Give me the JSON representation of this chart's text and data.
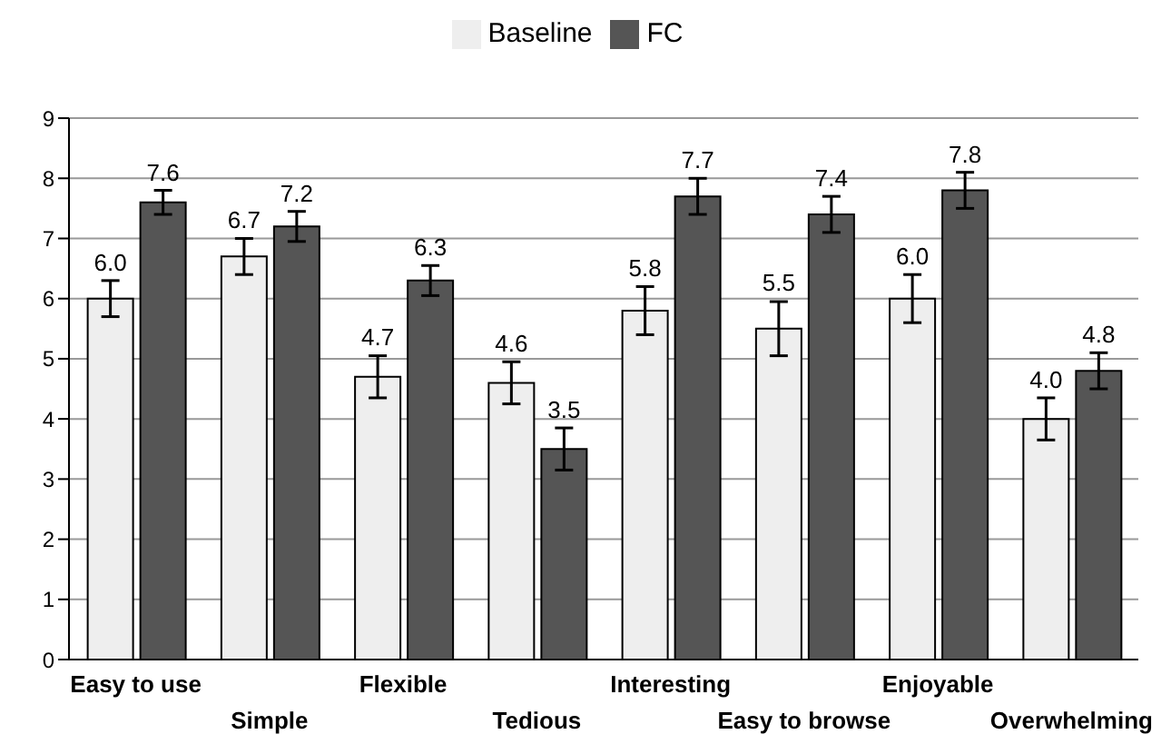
{
  "chart_data": {
    "type": "bar",
    "categories": [
      "Easy to use",
      "Simple",
      "Flexible",
      "Tedious",
      "Interesting",
      "Easy to browse",
      "Enjoyable",
      "Overwhelming"
    ],
    "series": [
      {
        "name": "Baseline",
        "color": "#eeeeee",
        "values": [
          6.0,
          6.7,
          4.7,
          4.6,
          5.8,
          5.5,
          6.0,
          4.0
        ],
        "errors": [
          0.3,
          0.3,
          0.35,
          0.35,
          0.4,
          0.45,
          0.4,
          0.35
        ],
        "value_labels": [
          "6.0",
          "6.7",
          "4.7",
          "4.6",
          "5.8",
          "5.5",
          "6.0",
          "4.0"
        ]
      },
      {
        "name": "FC",
        "color": "#555555",
        "values": [
          7.6,
          7.2,
          6.3,
          3.5,
          7.7,
          7.4,
          7.8,
          4.8
        ],
        "errors": [
          0.2,
          0.25,
          0.25,
          0.35,
          0.3,
          0.3,
          0.3,
          0.3
        ],
        "value_labels": [
          "7.6",
          "7.2",
          "6.3",
          "3.5",
          "7.7",
          "7.4",
          "7.8",
          "4.8"
        ]
      }
    ],
    "ylim": [
      0,
      9
    ],
    "yticks": [
      0,
      1,
      2,
      3,
      4,
      5,
      6,
      7,
      8,
      9
    ],
    "grid": "y",
    "legend": "top"
  }
}
